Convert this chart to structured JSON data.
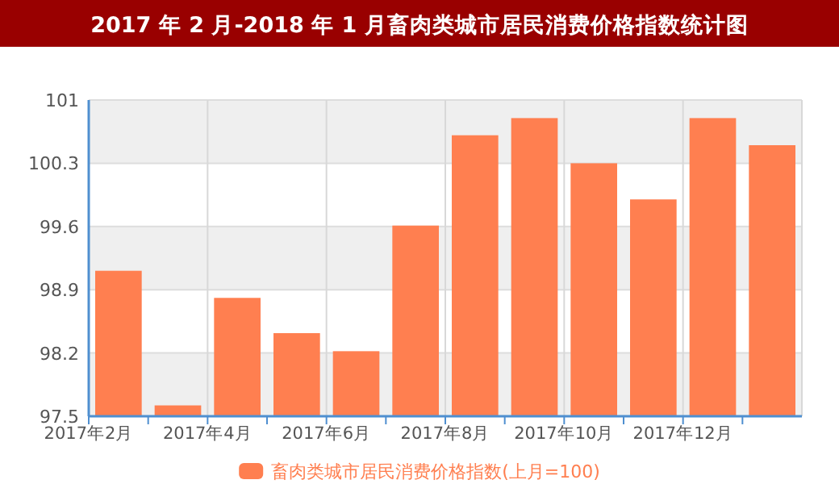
{
  "chart_data": {
    "type": "bar",
    "title": "2017 年 2 月-2018 年 1 月畜肉类城市居民消费价格指数统计图",
    "categories": [
      "2017年2月",
      null,
      "2017年4月",
      null,
      "2017年6月",
      null,
      "2017年8月",
      null,
      "2017年10月",
      null,
      "2017年12月",
      null
    ],
    "series": [
      {
        "name": "畜肉类城市居民消费价格指数(上月=100)",
        "color": "#ff7f50",
        "values": [
          99.11,
          97.62,
          98.81,
          98.42,
          98.22,
          99.61,
          100.61,
          100.8,
          100.3,
          99.9,
          100.8,
          100.5
        ]
      }
    ],
    "ylim": [
      97.5,
      101
    ],
    "yticks": [
      97.5,
      98.2,
      98.9,
      99.6,
      100.3,
      101
    ],
    "grid": true,
    "legend": "bottom"
  }
}
